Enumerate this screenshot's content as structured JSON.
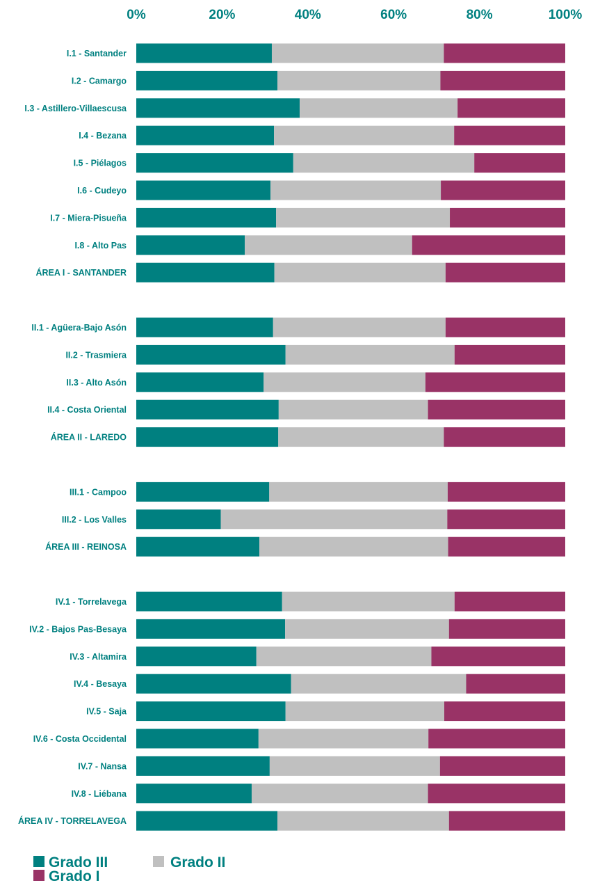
{
  "chart_data": {
    "type": "bar",
    "orientation": "horizontal",
    "stacked": "percent",
    "axis": {
      "position": "top",
      "ticks": [
        "0%",
        "20%",
        "40%",
        "60%",
        "80%",
        "100%"
      ],
      "xlim": [
        0,
        100
      ]
    },
    "grid": false,
    "legend_placement": "bottom-left",
    "colors": {
      "grado_iii": "#008080",
      "grado_ii": "#C0C0C0",
      "grado_i": "#993366",
      "text": "#008080"
    },
    "groups": [
      {
        "categories": [
          "I.1 - Santander",
          "I.2 - Camargo",
          "I.3 - Astillero-Villaescusa",
          "I.4 - Bezana",
          "I.5 - Piélagos",
          "I.6 - Cudeyo",
          "I.7 - Miera-Pisueña",
          "I.8 - Alto Pas",
          "ÁREA I - SANTANDER"
        ]
      },
      {
        "categories": [
          "II.1 - Agüera-Bajo Asón",
          "II.2 - Trasmiera",
          "II.3 - Alto Asón",
          "II.4 - Costa Oriental",
          "ÁREA II - LAREDO"
        ]
      },
      {
        "categories": [
          "III.1 - Campoo",
          "III.2 - Los Valles",
          "ÁREA III - REINOSA"
        ]
      },
      {
        "categories": [
          "IV.1 - Torrelavega",
          "IV.2 - Bajos Pas-Besaya",
          "IV.3 - Altamira",
          "IV.4 - Besaya",
          "IV.5 - Saja",
          "IV.6 - Costa Occidental",
          "IV.7 - Nansa",
          "IV.8 - Liébana",
          "ÁREA IV - TORRELAVEGA"
        ]
      }
    ],
    "series": [
      {
        "name": "Grado III",
        "color": "#008080",
        "values": [
          31.6,
          32.9,
          38.1,
          32.1,
          36.6,
          31.3,
          32.6,
          25.3,
          32.2,
          31.9,
          34.8,
          29.7,
          33.2,
          33.1,
          31.0,
          19.7,
          28.7,
          34.0,
          34.7,
          28.0,
          36.1,
          34.8,
          28.5,
          31.1,
          26.9,
          32.9
        ]
      },
      {
        "name": "Grado II",
        "color": "#C0C0C0",
        "values": [
          40.1,
          38.0,
          36.8,
          42.0,
          42.2,
          39.7,
          40.5,
          39.0,
          39.9,
          40.2,
          39.4,
          37.7,
          34.8,
          38.6,
          41.6,
          52.8,
          44.0,
          40.2,
          38.2,
          40.8,
          40.8,
          37.0,
          39.6,
          39.7,
          41.1,
          40.0
        ]
      },
      {
        "name": "Grado I",
        "color": "#993366",
        "values": [
          28.3,
          29.1,
          25.1,
          25.9,
          21.2,
          29.0,
          26.9,
          35.7,
          27.9,
          27.9,
          25.8,
          32.6,
          32.0,
          28.3,
          27.4,
          27.5,
          27.3,
          25.8,
          27.1,
          31.2,
          23.1,
          28.2,
          31.9,
          29.2,
          32.0,
          27.1
        ]
      }
    ]
  }
}
